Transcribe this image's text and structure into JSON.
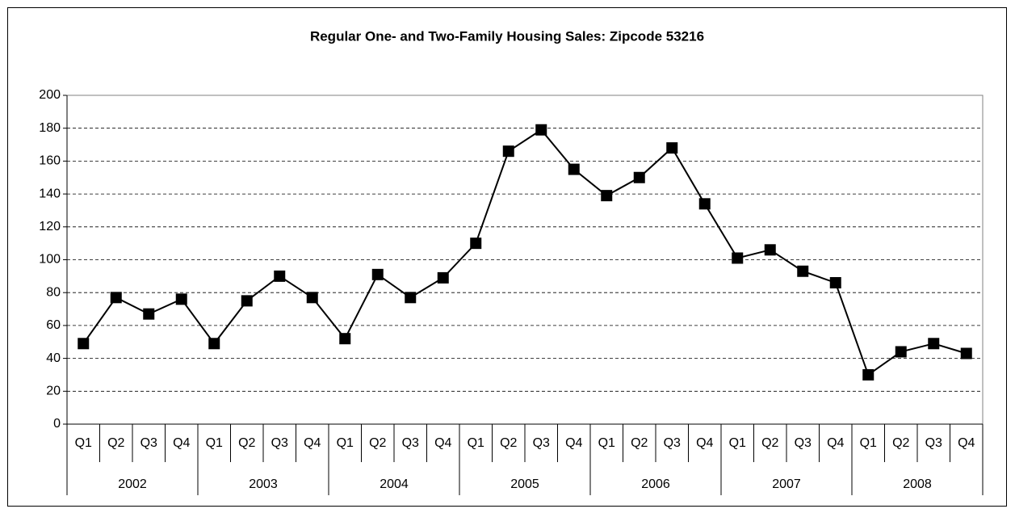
{
  "chart_data": {
    "type": "line",
    "title": "Regular One- and Two-Family Housing Sales: Zipcode 53216",
    "categories": [
      "Q1",
      "Q2",
      "Q3",
      "Q4",
      "Q1",
      "Q2",
      "Q3",
      "Q4",
      "Q1",
      "Q2",
      "Q3",
      "Q4",
      "Q1",
      "Q2",
      "Q3",
      "Q4",
      "Q1",
      "Q2",
      "Q3",
      "Q4",
      "Q1",
      "Q2",
      "Q3",
      "Q4",
      "Q1",
      "Q2",
      "Q3",
      "Q4"
    ],
    "category_groups": [
      "2002",
      "2003",
      "2004",
      "2005",
      "2006",
      "2007",
      "2008"
    ],
    "values": [
      49,
      77,
      67,
      76,
      49,
      75,
      90,
      77,
      52,
      91,
      77,
      89,
      110,
      166,
      179,
      155,
      139,
      150,
      168,
      134,
      101,
      106,
      93,
      86,
      30,
      44,
      49,
      43
    ],
    "color": "#000000",
    "ylim": [
      0,
      200
    ],
    "yticks": [
      0,
      20,
      40,
      60,
      80,
      100,
      120,
      140,
      160,
      180,
      200
    ],
    "grid": true
  }
}
